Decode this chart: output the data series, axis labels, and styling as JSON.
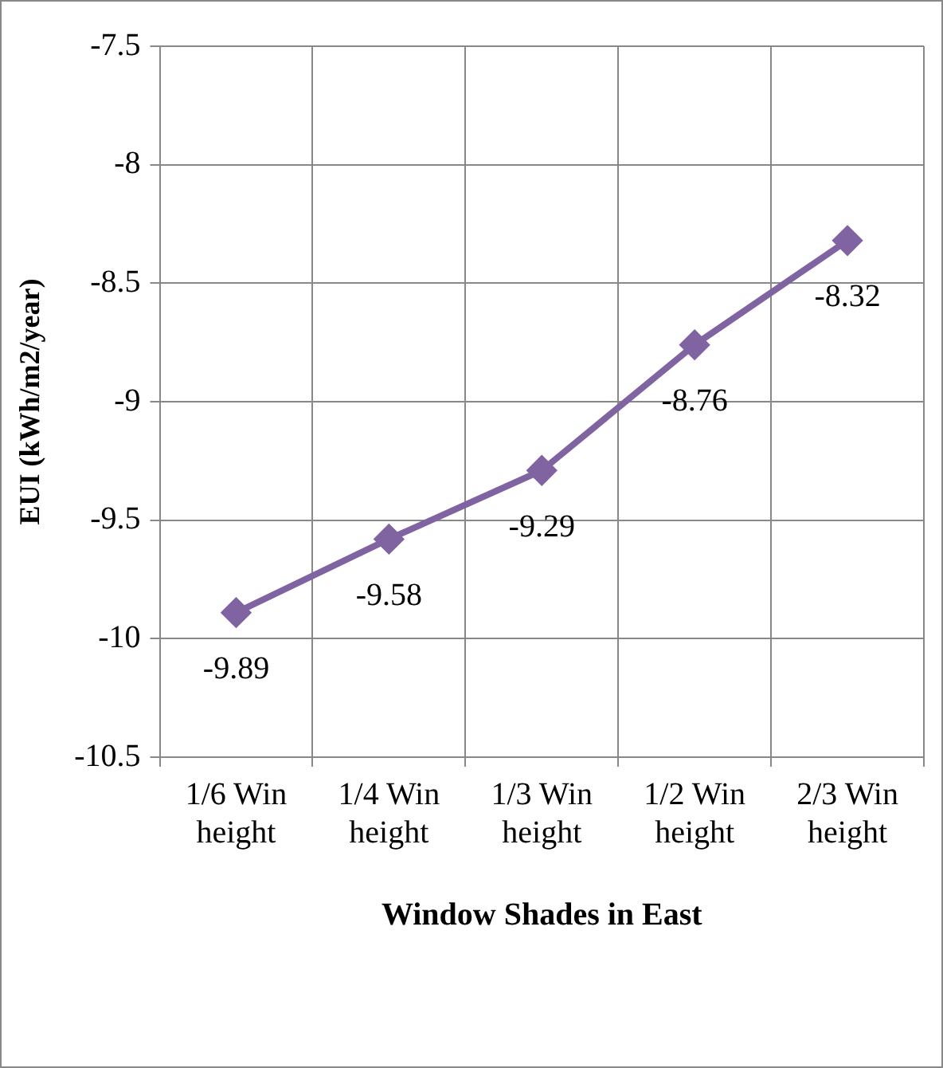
{
  "chart_data": {
    "type": "line",
    "xlabel": "Window Shades in East",
    "ylabel": "EUI (kWh/m2/year)",
    "categories": [
      "1/6 Win height",
      "1/4 Win height",
      "1/3 Win height",
      "1/2 Win height",
      "2/3 Win height"
    ],
    "series": [
      {
        "color": "#8064a2",
        "values": [
          -9.89,
          -9.58,
          -9.29,
          -8.76,
          -8.32
        ]
      }
    ],
    "ylim": [
      -10.5,
      -7.5
    ],
    "yticks": [
      -10.5,
      -10,
      -9.5,
      -9,
      -8.5,
      -8,
      -7.5
    ],
    "grid": true,
    "legend": false,
    "marker": "diamond",
    "line_style": "solid",
    "data_labels": true
  }
}
